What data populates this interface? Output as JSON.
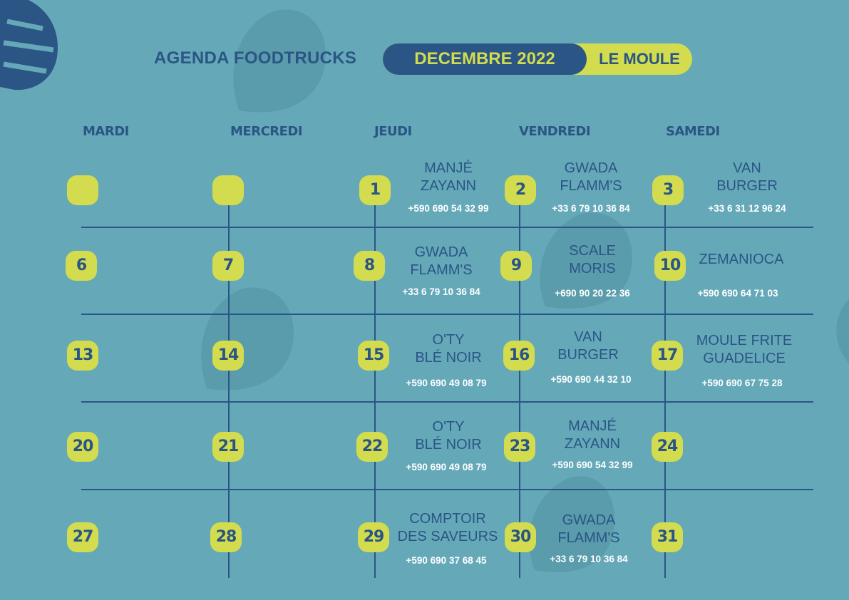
{
  "header": {
    "title": "AGENDA FOODTRUCKS",
    "month": "DECEMBRE 2022",
    "location": "LE MOULE"
  },
  "days": [
    "MARDI",
    "MERCREDI",
    "JEUDI",
    "VENDREDI",
    "SAMEDI"
  ],
  "calendar": {
    "rows": [
      {
        "dates": [
          "",
          "",
          "1",
          "2",
          "3"
        ],
        "trucks": [
          {
            "name": "MANJÉ\nZAYANN",
            "phone": "+590 690 54 32 99"
          },
          {
            "name": "GWADA\nFLAMM'S",
            "phone": "+33 6 79 10 36 84"
          },
          {
            "name": "VAN\nBURGER",
            "phone": "+33 6 31 12 96 24"
          }
        ]
      },
      {
        "dates": [
          "6",
          "7",
          "8",
          "9",
          "10"
        ],
        "trucks": [
          {
            "name": "GWADA\nFLAMM'S",
            "phone": "+33 6 79 10 36 84"
          },
          {
            "name": "SCALE\nMORIS",
            "phone": "+690 90 20 22 36"
          },
          {
            "name": "ZEMANIOCA",
            "phone": "+590 690 64 71 03"
          }
        ]
      },
      {
        "dates": [
          "13",
          "14",
          "15",
          "16",
          "17"
        ],
        "trucks": [
          {
            "name": "O'TY\nBLÉ NOIR",
            "phone": "+590 690 49 08 79"
          },
          {
            "name": "VAN\nBURGER",
            "phone": "+590 690 44 32 10"
          },
          {
            "name": "MOULE FRITE\nGUADELICE",
            "phone": "+590 690 67 75 28"
          }
        ]
      },
      {
        "dates": [
          "20",
          "21",
          "22",
          "23",
          "24"
        ],
        "trucks": [
          {
            "name": "O'TY\nBLÉ NOIR",
            "phone": "+590 690 49 08 79"
          },
          {
            "name": "MANJÉ\nZAYANN",
            "phone": "+590 690 54 32 99"
          },
          {
            "name": "",
            "phone": ""
          }
        ]
      },
      {
        "dates": [
          "27",
          "28",
          "29",
          "30",
          "31"
        ],
        "trucks": [
          {
            "name": "COMPTOIR\nDES SAVEURS",
            "phone": "+590 690 37 68 45"
          },
          {
            "name": "GWADA\nFLAMM'S",
            "phone": "+33 6 79 10 36 84"
          },
          {
            "name": "",
            "phone": ""
          }
        ]
      }
    ]
  },
  "colors": {
    "background": "#65a9b9",
    "navy": "#2a5585",
    "lime": "#d3dc4e",
    "leaf": "#5a9bac"
  }
}
